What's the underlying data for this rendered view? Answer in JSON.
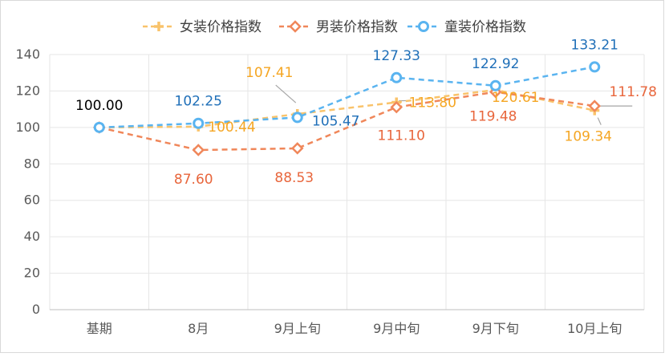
{
  "chart_data": {
    "type": "line",
    "categories": [
      "基期",
      "8月",
      "9月上旬",
      "9月中旬",
      "9月下旬",
      "10月上旬"
    ],
    "ylim": [
      0,
      140
    ],
    "yticks": [
      0,
      20,
      40,
      60,
      80,
      100,
      120,
      140
    ],
    "grid": true,
    "legend_position": "top",
    "series": [
      {
        "name": "女装价格指数",
        "color": "#F9C36B",
        "marker": "plus",
        "values": [
          100.0,
          100.44,
          107.41,
          113.8,
          120.61,
          109.34
        ],
        "labels": [
          "",
          "100.44",
          "107.41",
          "113.80",
          "120.61",
          "109.34"
        ]
      },
      {
        "name": "男装价格指数",
        "color": "#F0875A",
        "marker": "diamond",
        "values": [
          100.0,
          87.6,
          88.53,
          111.1,
          119.48,
          111.78
        ],
        "labels": [
          "",
          "87.60",
          "88.53",
          "111.10",
          "119.48",
          "111.78"
        ]
      },
      {
        "name": "童装价格指数",
        "color": "#5AB4F0",
        "marker": "circle",
        "values": [
          100.0,
          102.25,
          105.47,
          127.33,
          122.92,
          133.21
        ],
        "labels": [
          "100.00",
          "102.25",
          "105.47",
          "127.33",
          "122.92",
          "133.21"
        ]
      }
    ],
    "label_colors": {
      "女装价格指数": "#F5A623",
      "男装价格指数": "#E8663C",
      "童装价格指数": "#1F6FB8",
      "base": "#000000"
    }
  }
}
